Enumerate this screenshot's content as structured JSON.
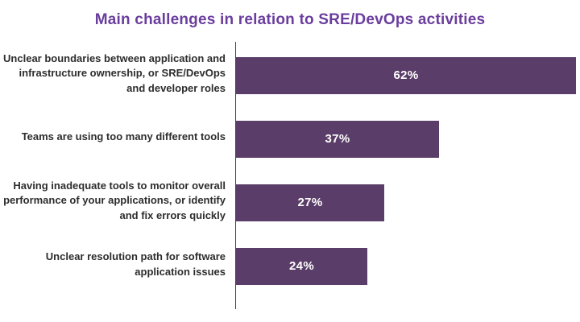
{
  "title": "Main challenges in relation to SRE/DevOps activities",
  "colors": {
    "title": "#6a3d9e",
    "bar": "#5a3d68",
    "label": "#2d2d2d",
    "axis": "#444444"
  },
  "chart_data": {
    "type": "bar",
    "orientation": "horizontal",
    "title": "Main challenges in relation to SRE/DevOps activities",
    "categories": [
      "Unclear boundaries between application and infrastructure ownership, or SRE/DevOps and developer roles",
      "Teams are using too many different tools",
      "Having inadequate tools to monitor overall performance of your applications, or identify and fix errors quickly",
      "Unclear resolution path for software application issues"
    ],
    "values": [
      62,
      37,
      27,
      24
    ],
    "value_labels": [
      "62%",
      "37%",
      "27%",
      "24%"
    ],
    "xlabel": "",
    "ylabel": "",
    "xlim": [
      0,
      62
    ],
    "grid": false,
    "legend": false,
    "value_label_position": "center-inside",
    "unit": "%"
  }
}
